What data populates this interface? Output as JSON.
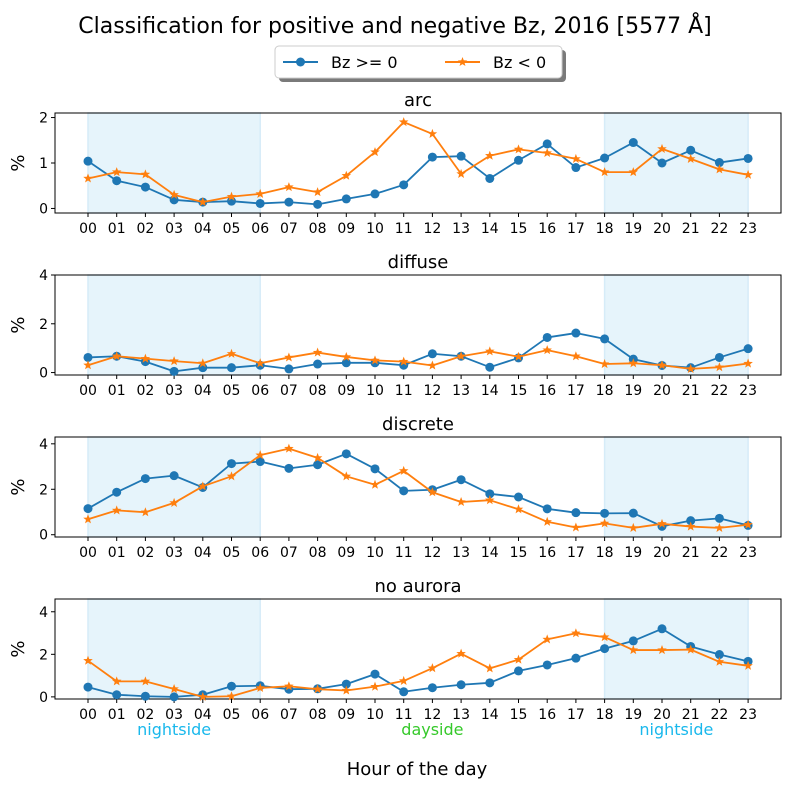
{
  "title": "Classification for positive and negative Bz, 2016 [5577 Å]",
  "xlabel": "Hour of the day",
  "legend": {
    "placement": "top-center",
    "entries": [
      "Bz >= 0",
      "Bz < 0"
    ]
  },
  "colors": {
    "bz_pos": "#1f77b4",
    "bz_neg": "#ff7f0e",
    "shade": "#d6ecf8",
    "nightside": "#19b8ec",
    "dayside": "#35c92a"
  },
  "region_labels": [
    {
      "text": "nightside",
      "hour": 3,
      "color": "nightside"
    },
    {
      "text": "dayside",
      "hour": 12,
      "color": "dayside"
    },
    {
      "text": "nightside",
      "hour": 20.5,
      "color": "nightside"
    }
  ],
  "chart_data": [
    {
      "type": "line",
      "title": "arc",
      "ylabel": "%",
      "ylim": [
        -0.1,
        2.1
      ],
      "yticks": [
        0,
        1,
        2
      ],
      "x": [
        "00",
        "01",
        "02",
        "03",
        "04",
        "05",
        "06",
        "07",
        "08",
        "09",
        "10",
        "11",
        "12",
        "13",
        "14",
        "15",
        "16",
        "17",
        "18",
        "19",
        "20",
        "21",
        "22",
        "23"
      ],
      "shaded_ranges": [
        [
          0,
          6
        ],
        [
          18,
          23
        ]
      ],
      "series": [
        {
          "name": "Bz >= 0",
          "marker": "circle",
          "values": [
            1.04,
            0.61,
            0.47,
            0.19,
            0.14,
            0.16,
            0.11,
            0.14,
            0.09,
            0.21,
            0.32,
            0.52,
            1.13,
            1.15,
            0.66,
            1.06,
            1.42,
            0.9,
            1.11,
            1.45,
            1.0,
            1.28,
            1.01,
            1.1
          ]
        },
        {
          "name": "Bz < 0",
          "marker": "star",
          "values": [
            0.66,
            0.8,
            0.75,
            0.3,
            0.14,
            0.26,
            0.32,
            0.47,
            0.36,
            0.72,
            1.24,
            1.9,
            1.64,
            0.76,
            1.16,
            1.3,
            1.22,
            1.09,
            0.8,
            0.8,
            1.31,
            1.09,
            0.86,
            0.74
          ]
        }
      ]
    },
    {
      "type": "line",
      "title": "diffuse",
      "ylabel": "%",
      "ylim": [
        -0.1,
        4.0
      ],
      "yticks": [
        0,
        2,
        4
      ],
      "x": [
        "00",
        "01",
        "02",
        "03",
        "04",
        "05",
        "06",
        "07",
        "08",
        "09",
        "10",
        "11",
        "12",
        "13",
        "14",
        "15",
        "16",
        "17",
        "18",
        "19",
        "20",
        "21",
        "22",
        "23"
      ],
      "shaded_ranges": [
        [
          0,
          6
        ],
        [
          18,
          23
        ]
      ],
      "series": [
        {
          "name": "Bz >= 0",
          "marker": "circle",
          "values": [
            0.62,
            0.67,
            0.45,
            0.05,
            0.2,
            0.2,
            0.3,
            0.15,
            0.35,
            0.4,
            0.4,
            0.3,
            0.77,
            0.67,
            0.22,
            0.6,
            1.44,
            1.62,
            1.38,
            0.55,
            0.29,
            0.2,
            0.62,
            0.98
          ]
        },
        {
          "name": "Bz < 0",
          "marker": "star",
          "values": [
            0.3,
            0.67,
            0.57,
            0.47,
            0.38,
            0.77,
            0.38,
            0.62,
            0.82,
            0.64,
            0.5,
            0.45,
            0.29,
            0.67,
            0.87,
            0.65,
            0.92,
            0.67,
            0.35,
            0.38,
            0.3,
            0.15,
            0.22,
            0.37
          ]
        }
      ]
    },
    {
      "type": "line",
      "title": "discrete",
      "ylabel": "%",
      "ylim": [
        -0.1,
        4.3
      ],
      "yticks": [
        0,
        2,
        4
      ],
      "x": [
        "00",
        "01",
        "02",
        "03",
        "04",
        "05",
        "06",
        "07",
        "08",
        "09",
        "10",
        "11",
        "12",
        "13",
        "14",
        "15",
        "16",
        "17",
        "18",
        "19",
        "20",
        "21",
        "22",
        "23"
      ],
      "shaded_ranges": [
        [
          0,
          6
        ],
        [
          18,
          23
        ]
      ],
      "series": [
        {
          "name": "Bz >= 0",
          "marker": "circle",
          "values": [
            1.15,
            1.87,
            2.47,
            2.6,
            2.08,
            3.13,
            3.22,
            2.92,
            3.08,
            3.56,
            2.9,
            1.93,
            1.98,
            2.42,
            1.8,
            1.66,
            1.14,
            0.97,
            0.94,
            0.95,
            0.37,
            0.62,
            0.72,
            0.41
          ]
        },
        {
          "name": "Bz < 0",
          "marker": "star",
          "values": [
            0.68,
            1.07,
            0.99,
            1.4,
            2.13,
            2.57,
            3.5,
            3.79,
            3.38,
            2.57,
            2.2,
            2.81,
            1.87,
            1.44,
            1.52,
            1.12,
            0.57,
            0.32,
            0.5,
            0.3,
            0.48,
            0.36,
            0.3,
            0.44
          ]
        }
      ]
    },
    {
      "type": "line",
      "title": "no aurora",
      "ylabel": "%",
      "ylim": [
        -0.1,
        4.6
      ],
      "yticks": [
        0,
        2,
        4
      ],
      "x": [
        "00",
        "01",
        "02",
        "03",
        "04",
        "05",
        "06",
        "07",
        "08",
        "09",
        "10",
        "11",
        "12",
        "13",
        "14",
        "15",
        "16",
        "17",
        "18",
        "19",
        "20",
        "21",
        "22",
        "23"
      ],
      "shaded_ranges": [
        [
          0,
          6
        ],
        [
          18,
          23
        ]
      ],
      "series": [
        {
          "name": "Bz >= 0",
          "marker": "circle",
          "values": [
            0.46,
            0.1,
            0.03,
            0.0,
            0.1,
            0.5,
            0.52,
            0.36,
            0.38,
            0.6,
            1.07,
            0.24,
            0.43,
            0.57,
            0.66,
            1.22,
            1.5,
            1.82,
            2.27,
            2.63,
            3.2,
            2.37,
            1.99,
            1.67
          ]
        },
        {
          "name": "Bz < 0",
          "marker": "star",
          "values": [
            1.7,
            0.73,
            0.73,
            0.37,
            0.0,
            0.03,
            0.42,
            0.5,
            0.36,
            0.3,
            0.48,
            0.75,
            1.35,
            2.03,
            1.34,
            1.75,
            2.7,
            2.99,
            2.81,
            2.2,
            2.2,
            2.22,
            1.65,
            1.46
          ]
        }
      ]
    }
  ]
}
